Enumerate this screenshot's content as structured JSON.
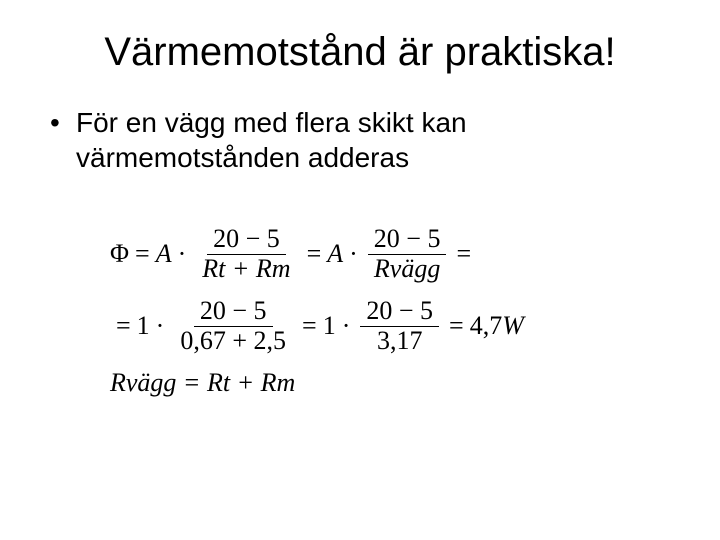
{
  "title": "Värmemotstånd är praktiska!",
  "bullet": "För en vägg med flera skikt kan värmemotstånden adderas",
  "eq": {
    "phi": "Φ",
    "eq": "=",
    "A": "A",
    "dot": "·",
    "diff": "20 − 5",
    "RtRm": "Rt + Rm",
    "Rvagg": "Rvägg",
    "one": "1",
    "sumDen": "0,67 + 2,5",
    "sumDen2": "3,17",
    "result": "4,7",
    "W": "W",
    "def": "Rvägg = Rt + Rm",
    "comma": ","
  }
}
